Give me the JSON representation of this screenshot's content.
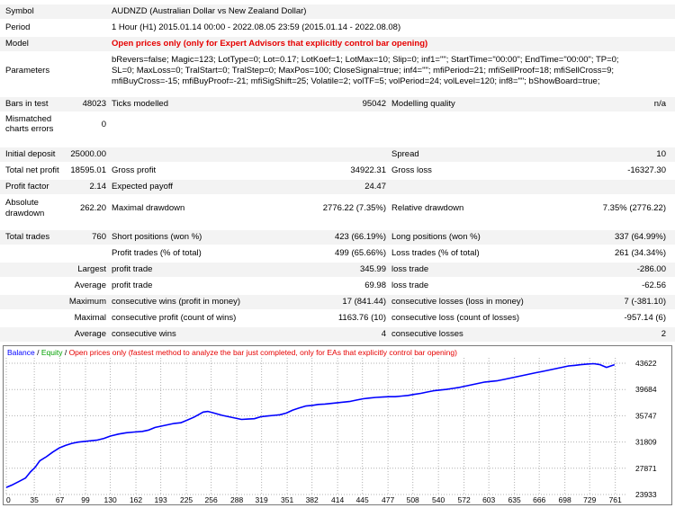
{
  "report": {
    "symbol_label": "Symbol",
    "symbol_value": "AUDNZD (Australian Dollar vs New Zealand Dollar)",
    "period_label": "Period",
    "period_value": "1 Hour (H1) 2015.01.14 00:00 - 2022.08.05 23:59 (2015.01.14 - 2022.08.08)",
    "model_label": "Model",
    "model_value": "Open prices only (only for Expert Advisors that explicitly control bar opening)",
    "parameters_label": "Parameters",
    "parameters_lines": [
      "bRevers=false; Magic=123; LotType=0; Lot=0.17; LotKoef=1; LotMax=10; Slip=0; inf1=\"\"; StartTime=\"00:00\"; EndTime=\"00:00\"; TP=0;",
      "SL=0; MaxLoss=0; TralStart=0; TralStep=0; MaxPos=100; CloseSignal=true; inf4=\"\"; mfiPeriod=21; mfiSellProof=18; mfiSellCross=9;",
      "mfiBuyCross=-15; mfiBuyProof=-21; mfiSigShift=25; Volatile=2; volTF=5; volPeriod=24; volLevel=120; inf8=\"\"; bShowBoard=true;"
    ],
    "bars_label": "Bars in test",
    "bars_value": "48023",
    "ticks_label": "Ticks modelled",
    "ticks_value": "95042",
    "quality_label": "Modelling quality",
    "quality_value": "n/a",
    "mismatch_label_1": "Mismatched",
    "mismatch_label_2": "charts errors",
    "mismatch_value": "0",
    "deposit_label": "Initial deposit",
    "deposit_value": "25000.00",
    "spread_label": "Spread",
    "spread_value": "10",
    "net_label": "Total net profit",
    "net_value": "18595.01",
    "gross_profit_label": "Gross profit",
    "gross_profit_value": "34922.31",
    "gross_loss_label": "Gross loss",
    "gross_loss_value": "-16327.30",
    "pf_label": "Profit factor",
    "pf_value": "2.14",
    "ep_label": "Expected payoff",
    "ep_value": "24.47",
    "abs_dd_label_1": "Absolute",
    "abs_dd_label_2": "drawdown",
    "abs_dd_value": "262.20",
    "max_dd_label": "Maximal drawdown",
    "max_dd_value": "2776.22 (7.35%)",
    "rel_dd_label": "Relative drawdown",
    "rel_dd_value": "7.35% (2776.22)",
    "trades_label": "Total trades",
    "trades_value": "760",
    "short_label": "Short positions (won %)",
    "short_value": "423 (66.19%)",
    "long_label": "Long positions (won %)",
    "long_value": "337 (64.99%)",
    "profit_trades_label": "Profit trades (% of total)",
    "profit_trades_value": "499 (65.66%)",
    "loss_trades_label": "Loss trades (% of total)",
    "loss_trades_value": "261 (34.34%)",
    "largest_label": "Largest",
    "largest_profit_label": "profit trade",
    "largest_profit_value": "345.99",
    "largest_loss_label": "loss trade",
    "largest_loss_value": "-286.00",
    "average_label": "Average",
    "average_profit_label": "profit trade",
    "average_profit_value": "69.98",
    "average_loss_label": "loss trade",
    "average_loss_value": "-62.56",
    "maximum_label": "Maximum",
    "max_wins_label": "consecutive wins (profit in money)",
    "max_wins_value": "17 (841.44)",
    "max_losses_label": "consecutive losses (loss in money)",
    "max_losses_value": "7 (-381.10)",
    "maximal_label": "Maximal",
    "max_cprofit_label": "consecutive profit (count of wins)",
    "max_cprofit_value": "1163.76 (10)",
    "max_closs_label": "consecutive loss (count of losses)",
    "max_closs_value": "-957.14 (6)",
    "avg_cons_label": "Average",
    "avg_wins_label": "consecutive wins",
    "avg_wins_value": "4",
    "avg_losses_label": "consecutive losses",
    "avg_losses_value": "2"
  },
  "chart_data": {
    "type": "line",
    "legend_balance": "Balance",
    "legend_sep1": " / ",
    "legend_equity": "Equity",
    "legend_sep2": " / ",
    "legend_note": "Open prices only (fastest method to analyze the bar just completed, only for EAs that explicitly control bar opening)",
    "x_ticks": [
      "0",
      "35",
      "67",
      "99",
      "130",
      "162",
      "193",
      "225",
      "256",
      "288",
      "319",
      "351",
      "382",
      "414",
      "445",
      "477",
      "508",
      "540",
      "572",
      "603",
      "635",
      "666",
      "698",
      "729",
      "761"
    ],
    "y_ticks": [
      "43622",
      "39684",
      "35747",
      "31809",
      "27871",
      "23933"
    ],
    "ylim": [
      23933,
      43622
    ],
    "xlim": [
      0,
      776
    ],
    "colors": {
      "balance": "#0000ff",
      "equity": "#00a000",
      "grid": "#b0b0b0",
      "legend_note": "#e60000"
    },
    "series": [
      {
        "name": "Balance",
        "x": [
          0,
          8,
          16,
          24,
          30,
          36,
          42,
          50,
          58,
          66,
          74,
          82,
          90,
          98,
          106,
          114,
          122,
          130,
          140,
          150,
          160,
          170,
          178,
          186,
          194,
          202,
          210,
          218,
          226,
          234,
          240,
          246,
          252,
          258,
          264,
          270,
          278,
          286,
          294,
          302,
          310,
          318,
          326,
          334,
          342,
          350,
          358,
          366,
          374,
          382,
          390,
          398,
          406,
          414,
          422,
          430,
          438,
          446,
          454,
          462,
          470,
          478,
          486,
          494,
          502,
          510,
          518,
          526,
          534,
          542,
          550,
          558,
          566,
          574,
          582,
          590,
          598,
          606,
          614,
          622,
          630,
          638,
          646,
          654,
          662,
          670,
          678,
          686,
          694,
          702,
          710,
          718,
          726,
          734,
          742,
          750,
          760
        ],
        "y": [
          25000,
          25400,
          25900,
          26400,
          27300,
          28000,
          29000,
          29600,
          30300,
          30900,
          31300,
          31600,
          31800,
          31900,
          32000,
          32100,
          32350,
          32700,
          33000,
          33200,
          33300,
          33400,
          33600,
          34000,
          34200,
          34400,
          34600,
          34700,
          35100,
          35500,
          35900,
          36300,
          36400,
          36200,
          36000,
          35800,
          35600,
          35400,
          35200,
          35250,
          35300,
          35600,
          35700,
          35800,
          35900,
          36150,
          36600,
          36900,
          37200,
          37300,
          37450,
          37500,
          37600,
          37700,
          37800,
          37900,
          38100,
          38300,
          38400,
          38500,
          38550,
          38600,
          38600,
          38700,
          38800,
          38950,
          39100,
          39300,
          39500,
          39600,
          39700,
          39850,
          40000,
          40200,
          40400,
          40600,
          40800,
          40900,
          41000,
          41200,
          41400,
          41600,
          41800,
          42000,
          42200,
          42400,
          42600,
          42800,
          43000,
          43200,
          43300,
          43400,
          43500,
          43550,
          43400,
          43000,
          43400
        ]
      }
    ]
  }
}
